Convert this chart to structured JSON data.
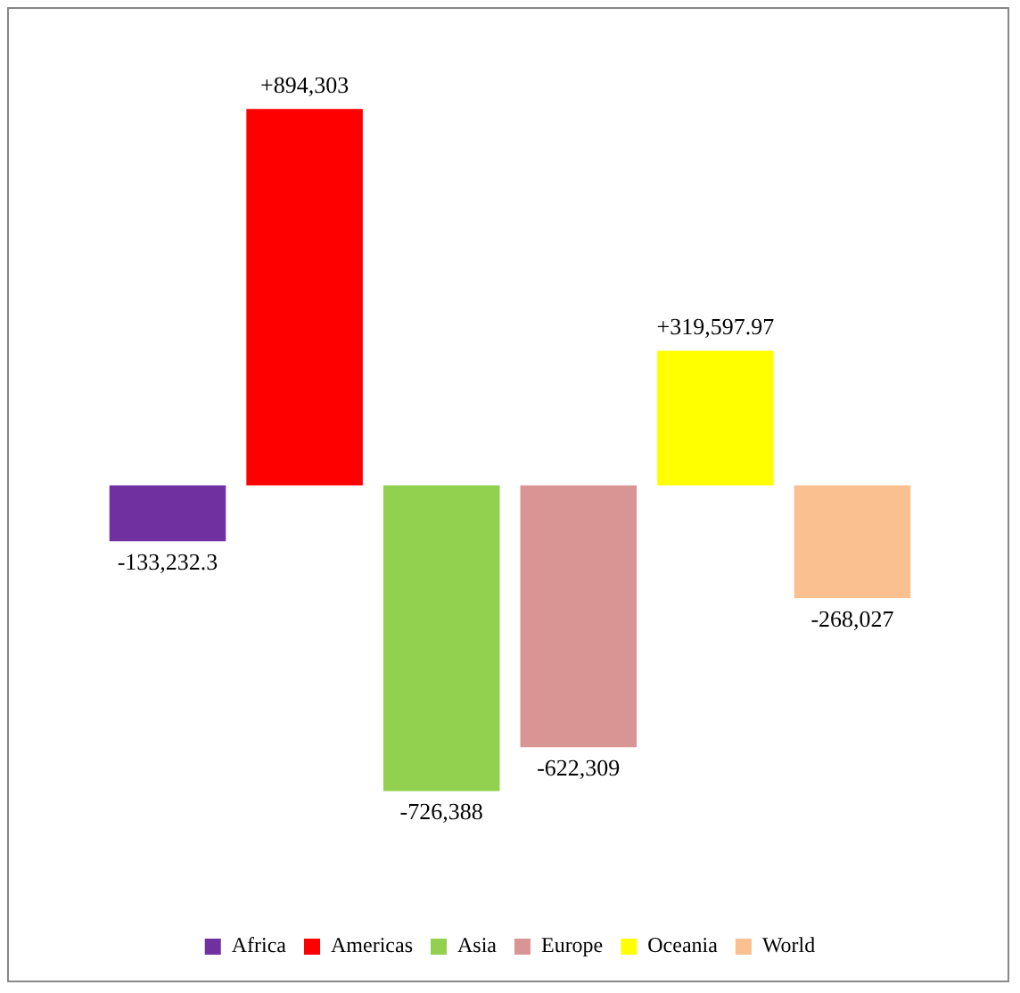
{
  "chart_data": {
    "type": "bar",
    "categories": [
      null
    ],
    "legend": "bottom",
    "series": [
      {
        "name": "Africa",
        "color": "#7030a0",
        "values": [
          -133232.3
        ],
        "value_labels": [
          "-133,232.3"
        ]
      },
      {
        "name": "Americas",
        "color": "#ff0000",
        "values": [
          894303
        ],
        "value_labels": [
          "+894,303"
        ]
      },
      {
        "name": "Asia",
        "color": "#92d050",
        "values": [
          -726388
        ],
        "value_labels": [
          "-726,388"
        ]
      },
      {
        "name": "Europe",
        "color": "#d99594",
        "values": [
          -622309
        ],
        "value_labels": [
          "-622,309"
        ]
      },
      {
        "name": "Oceania",
        "color": "#ffff00",
        "values": [
          319597.97
        ],
        "value_labels": [
          "+319,597.97"
        ]
      },
      {
        "name": "World",
        "color": "#fac090",
        "values": [
          -268027
        ],
        "value_labels": [
          "-268,027"
        ]
      }
    ]
  }
}
